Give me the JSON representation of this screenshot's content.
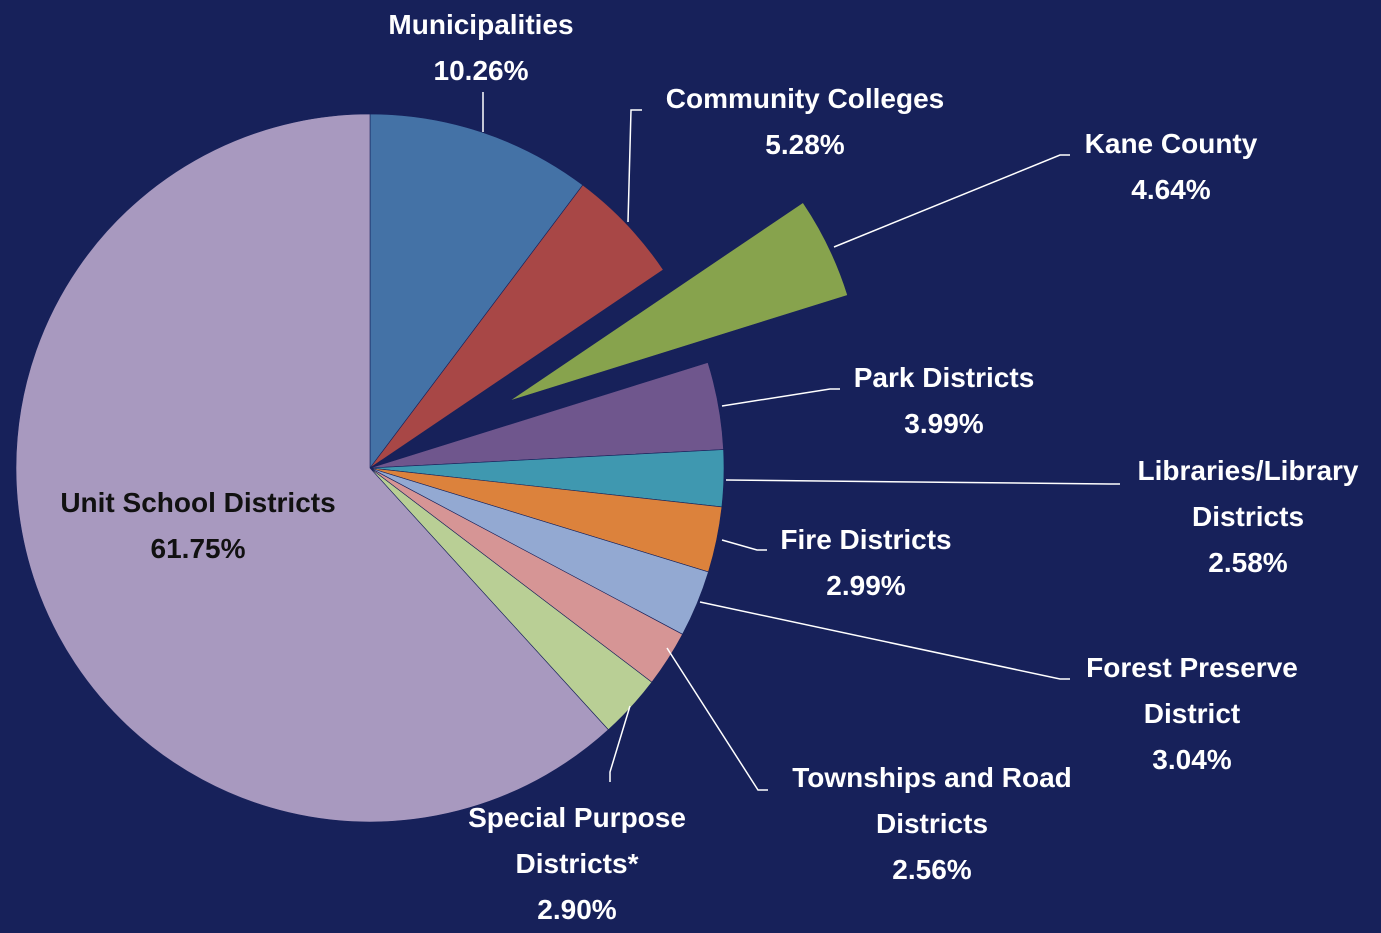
{
  "chart_data": {
    "type": "pie",
    "title": "",
    "background": "#17215a",
    "slices": [
      {
        "label_lines": [
          "Municipalities"
        ],
        "value": 10.26,
        "value_text": "10.26%",
        "color": "#4472a6",
        "exploded": false
      },
      {
        "label_lines": [
          "Community Colleges"
        ],
        "value": 5.28,
        "value_text": "5.28%",
        "color": "#a84746",
        "exploded": false
      },
      {
        "label_lines": [
          "Kane County"
        ],
        "value": 4.64,
        "value_text": "4.64%",
        "color": "#87a34d",
        "exploded": true
      },
      {
        "label_lines": [
          "Park Districts"
        ],
        "value": 3.99,
        "value_text": "3.99%",
        "color": "#6f568d",
        "exploded": false
      },
      {
        "label_lines": [
          "Libraries/Library",
          "Districts"
        ],
        "value": 2.58,
        "value_text": "2.58%",
        "color": "#3f98b0",
        "exploded": false
      },
      {
        "label_lines": [
          "Fire Districts"
        ],
        "value": 2.99,
        "value_text": "2.99%",
        "color": "#dc823c",
        "exploded": false
      },
      {
        "label_lines": [
          "Forest Preserve",
          "District"
        ],
        "value": 3.04,
        "value_text": "3.04%",
        "color": "#93a9d2",
        "exploded": false
      },
      {
        "label_lines": [
          "Townships and Road",
          "Districts"
        ],
        "value": 2.56,
        "value_text": "2.56%",
        "color": "#d69595",
        "exploded": false
      },
      {
        "label_lines": [
          "Special Purpose",
          "Districts*"
        ],
        "value": 2.9,
        "value_text": "2.90%",
        "color": "#b9cf95",
        "exploded": false
      },
      {
        "label_lines": [
          "Unit School Districts"
        ],
        "value": 61.75,
        "value_text": "61.75%",
        "color": "#a899bf",
        "exploded": false
      }
    ]
  }
}
